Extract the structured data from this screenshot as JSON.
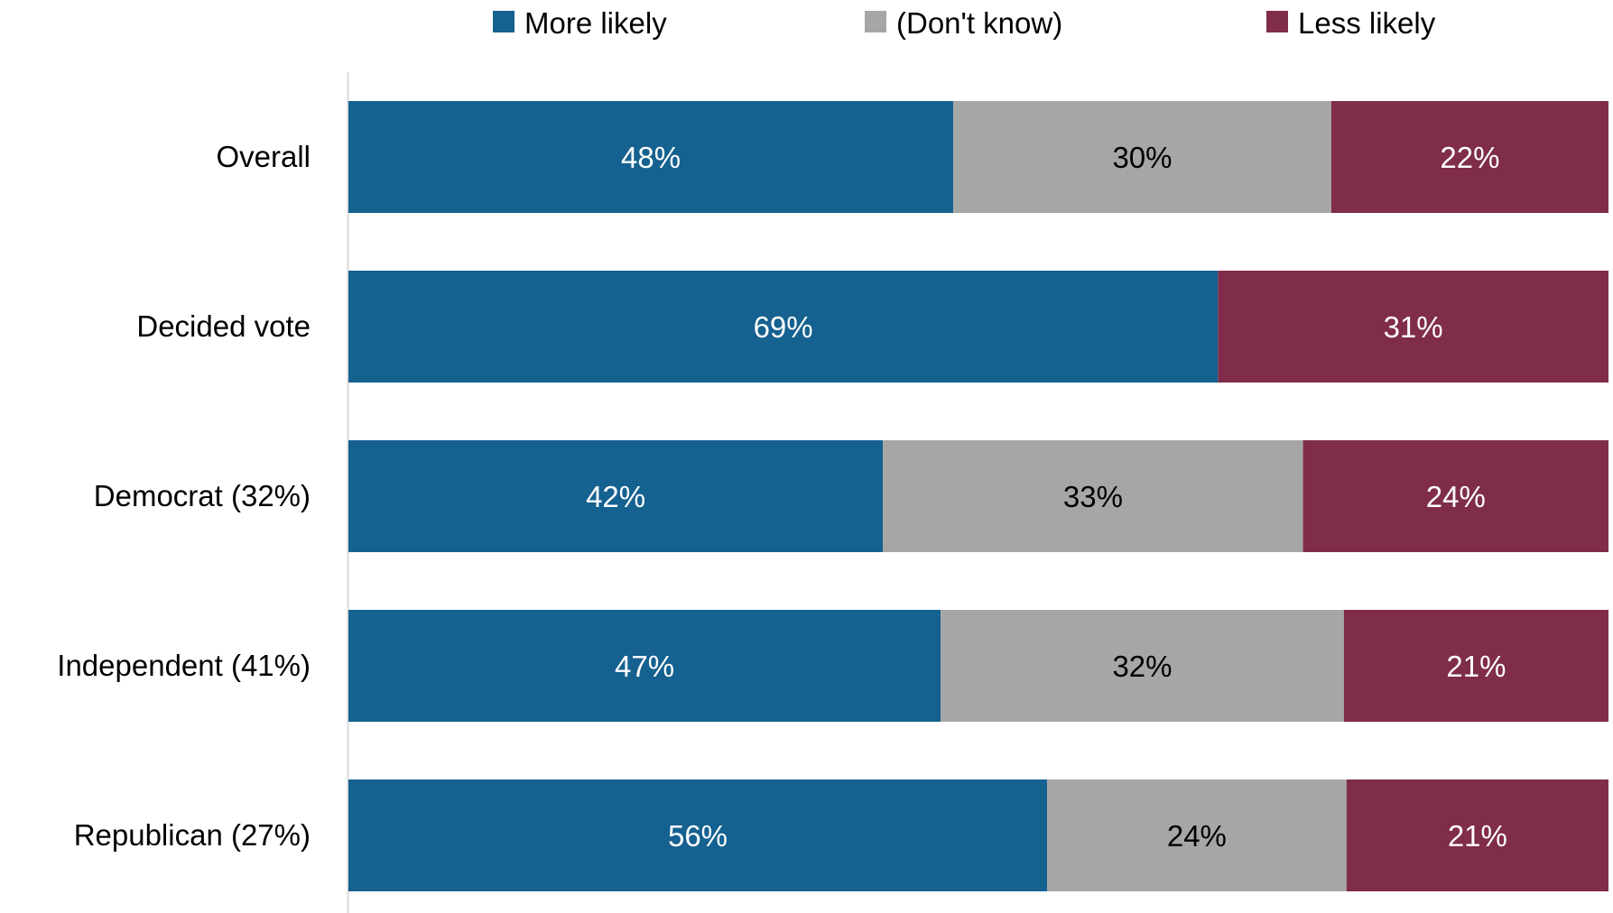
{
  "chart_data": {
    "type": "bar",
    "orientation": "horizontal",
    "stacked": true,
    "categories": [
      "Overall",
      "Decided vote",
      "Democrat (32%)",
      "Independent (41%)",
      "Republican (27%)"
    ],
    "series": [
      {
        "name": "More likely",
        "values": [
          48,
          69,
          42,
          47,
          56
        ],
        "color": "#156190",
        "label_color": "#ffffff"
      },
      {
        "name": "(Don't know)",
        "values": [
          30,
          null,
          33,
          32,
          24
        ],
        "color": "#a6a6a6",
        "label_color": "#000000"
      },
      {
        "name": "Less likely",
        "values": [
          22,
          31,
          24,
          21,
          21
        ],
        "color": "#7f2d4a",
        "label_color": "#ffffff"
      }
    ],
    "value_suffix": "%",
    "title": "",
    "xlabel": "",
    "ylabel": "",
    "grid": false,
    "legend_position": "top",
    "axis_line_color": "#d9d9d9"
  }
}
